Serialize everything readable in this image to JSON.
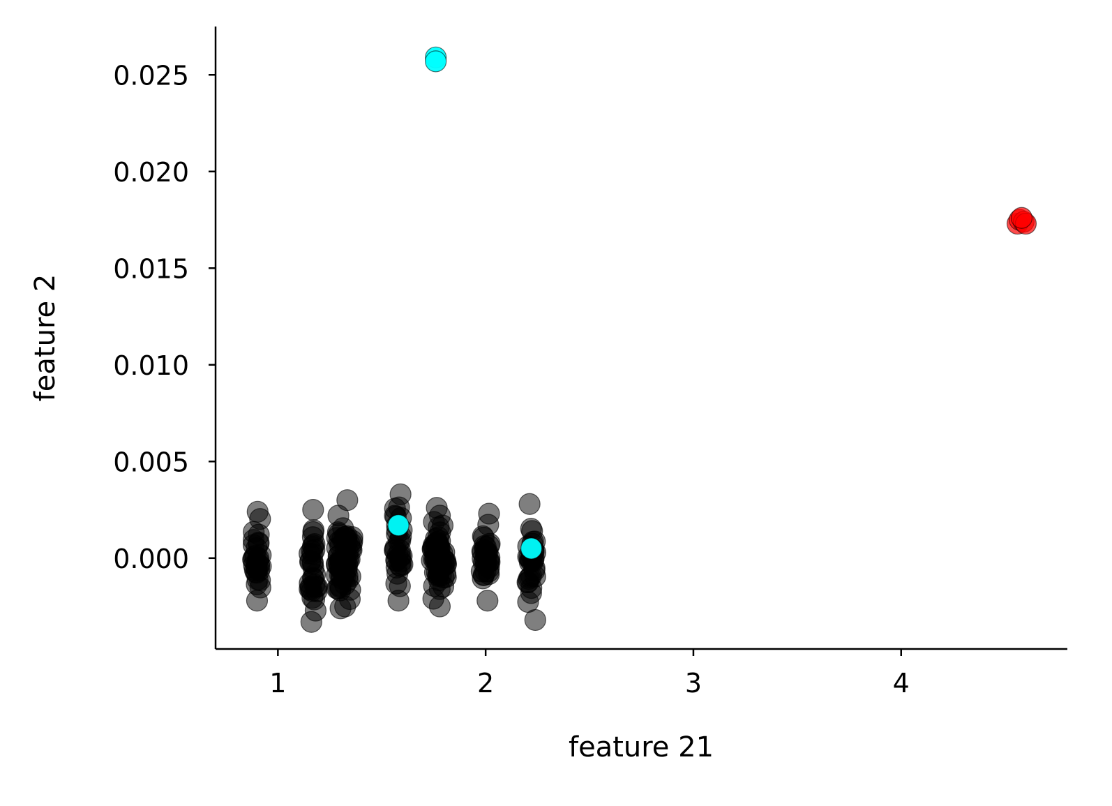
{
  "chart_data": {
    "type": "scatter",
    "title": "",
    "xlabel": "feature 21",
    "ylabel": "feature 2",
    "xlim": [
      0.7,
      4.8
    ],
    "ylim": [
      -0.0047,
      0.0275
    ],
    "xticks": [
      1,
      2,
      3,
      4
    ],
    "xtick_labels": [
      "1",
      "2",
      "3",
      "4"
    ],
    "yticks": [
      0.0,
      0.005,
      0.01,
      0.015,
      0.02,
      0.025
    ],
    "ytick_labels": [
      "0.000",
      "0.005",
      "0.010",
      "0.015",
      "0.020",
      "0.025"
    ],
    "grid": false,
    "legend": "none",
    "colors": {
      "black": "#000000",
      "cyan": "#00ffff",
      "red": "#ff0000"
    },
    "series": [
      {
        "color": "#000000",
        "clusters": [
          {
            "x": 0.9,
            "ymin": -0.0022,
            "ymax": 0.0024
          },
          {
            "x": 1.17,
            "ymin": -0.0033,
            "ymax": 0.0025
          },
          {
            "x": 1.3,
            "ymin": -0.0026,
            "ymax": 0.0022
          },
          {
            "x": 1.34,
            "ymin": -0.0025,
            "ymax": 0.003
          },
          {
            "x": 1.58,
            "ymin": -0.0022,
            "ymax": 0.0033
          },
          {
            "x": 1.76,
            "ymin": -0.0021,
            "ymax": 0.0026
          },
          {
            "x": 1.79,
            "ymin": -0.0025,
            "ymax": 0.0022
          },
          {
            "x": 2.0,
            "ymin": -0.0022,
            "ymax": 0.0023
          },
          {
            "x": 2.22,
            "ymin": -0.0032,
            "ymax": 0.0028
          }
        ]
      },
      {
        "color": "#00ffff",
        "points": [
          [
            1.76,
            0.0259
          ],
          [
            1.76,
            0.0257
          ],
          [
            1.58,
            0.0017
          ],
          [
            2.22,
            0.0005
          ]
        ]
      },
      {
        "color": "#ff0000",
        "points": [
          [
            4.56,
            0.0173
          ],
          [
            4.57,
            0.0175
          ],
          [
            4.59,
            0.0174
          ],
          [
            4.6,
            0.0173
          ],
          [
            4.58,
            0.0176
          ]
        ]
      }
    ]
  }
}
